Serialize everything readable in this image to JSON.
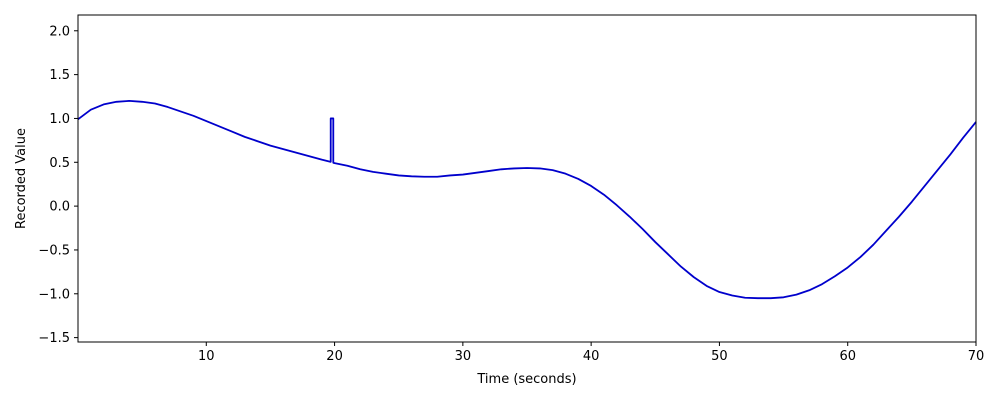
{
  "chart_data": {
    "type": "line",
    "title": "",
    "xlabel": "Time (seconds)",
    "ylabel": "Recorded Value",
    "xlim": [
      0,
      70
    ],
    "ylim": [
      -1.55,
      2.18
    ],
    "grid": false,
    "legend": "none",
    "x_ticks": [
      {
        "value": 10,
        "label": "10"
      },
      {
        "value": 20,
        "label": "20"
      },
      {
        "value": 30,
        "label": "30"
      },
      {
        "value": 40,
        "label": "40"
      },
      {
        "value": 50,
        "label": "50"
      },
      {
        "value": 60,
        "label": "60"
      },
      {
        "value": 70,
        "label": "70"
      }
    ],
    "y_ticks": [
      {
        "value": -1.5,
        "label": "−1.5"
      },
      {
        "value": -1.0,
        "label": "−1.0"
      },
      {
        "value": -0.5,
        "label": "−0.5"
      },
      {
        "value": 0.0,
        "label": "0.0"
      },
      {
        "value": 0.5,
        "label": "0.5"
      },
      {
        "value": 1.0,
        "label": "1.0"
      },
      {
        "value": 1.5,
        "label": "1.5"
      },
      {
        "value": 2.0,
        "label": "2.0"
      }
    ],
    "series": [
      {
        "color": "#0000cc",
        "x": [
          0,
          1,
          2,
          3,
          4,
          5,
          6,
          7,
          8,
          9,
          10,
          11,
          12,
          13,
          14,
          15,
          16,
          17,
          18,
          19,
          19.7,
          19.7,
          19.9,
          19.9,
          20,
          21,
          22,
          23,
          24,
          25,
          26,
          27,
          28,
          29,
          30,
          31,
          32,
          33,
          34,
          35,
          36,
          37,
          38,
          39,
          40,
          41,
          42,
          43,
          44,
          45,
          46,
          47,
          48,
          49,
          50,
          51,
          52,
          53,
          54,
          55,
          56,
          57,
          58,
          59,
          60,
          61,
          62,
          63,
          64,
          65,
          66,
          67,
          68,
          69,
          70
        ],
        "y": [
          0.99,
          1.1,
          1.16,
          1.19,
          1.2,
          1.19,
          1.17,
          1.13,
          1.08,
          1.03,
          0.97,
          0.91,
          0.85,
          0.79,
          0.74,
          0.69,
          0.65,
          0.61,
          0.57,
          0.53,
          0.505,
          1.0,
          1.0,
          0.495,
          0.49,
          0.46,
          0.42,
          0.39,
          0.37,
          0.35,
          0.34,
          0.335,
          0.335,
          0.35,
          0.36,
          0.38,
          0.4,
          0.42,
          0.43,
          0.435,
          0.43,
          0.41,
          0.37,
          0.31,
          0.23,
          0.13,
          0.01,
          -0.12,
          -0.26,
          -0.41,
          -0.55,
          -0.69,
          -0.81,
          -0.91,
          -0.98,
          -1.02,
          -1.045,
          -1.05,
          -1.05,
          -1.04,
          -1.01,
          -0.96,
          -0.89,
          -0.8,
          -0.7,
          -0.58,
          -0.44,
          -0.28,
          -0.12,
          0.05,
          0.23,
          0.41,
          0.59,
          0.78,
          0.96
        ]
      }
    ]
  }
}
